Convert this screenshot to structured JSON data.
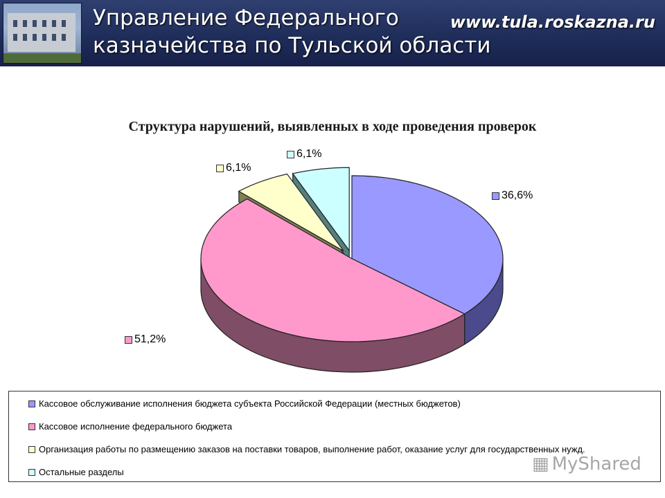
{
  "header": {
    "title_lines": [
      "Управление Федерального",
      "казначейства по Тульской области"
    ],
    "url": "www.tula.roskazna.ru"
  },
  "chart_data": {
    "type": "pie",
    "title": "Структура нарушений, выявленных в ходе проведения проверок",
    "slices": [
      {
        "name": "Кассовое обслуживание исполнения бюджета субъекта Российской Федерации (местных бюджетов)",
        "value": 36.6,
        "label": "36,6%",
        "color": "#9999ff",
        "side": "#4a4a8c"
      },
      {
        "name": "Кассовое исполнение федерального бюджета",
        "value": 51.2,
        "label": "51,2%",
        "color": "#ff99cc",
        "side": "#7f4d66"
      },
      {
        "name": "Организация работы по размещению заказов на поставки товаров, выполнение работ, оказание услуг для государственных нужд.",
        "value": 6.1,
        "label": "6,1%",
        "color": "#ffffcc",
        "side": "#7f7f55"
      },
      {
        "name": "Остальные разделы",
        "value": 6.1,
        "label": "6,1%",
        "color": "#ccffff",
        "side": "#557f7f"
      }
    ],
    "legend_position": "bottom"
  },
  "watermark": "MyShared"
}
